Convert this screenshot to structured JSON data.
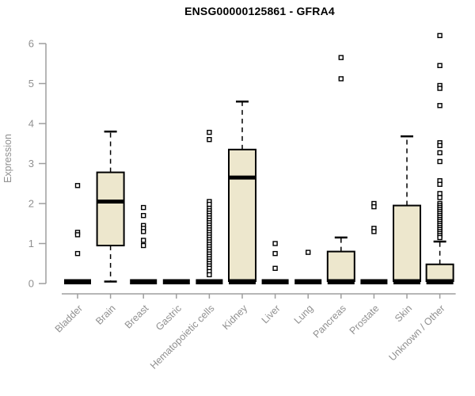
{
  "chart_data": {
    "type": "boxplot",
    "title": "ENSG00000125861 - GFRA4",
    "ylabel": "Expression",
    "xlabel": "",
    "ylim": [
      0,
      6
    ],
    "yticks": [
      0,
      1,
      2,
      3,
      4,
      5,
      6
    ],
    "grid": false,
    "legend": "none",
    "colors": {
      "box_fill": "#EDE7CD",
      "box_stroke": "#000000",
      "median": "#000000",
      "axis_line": "#9E9E9E",
      "tick_text": "#909090",
      "title_text": "#000000",
      "outlier_stroke": "#000000",
      "outlier_fill": "#ffffff",
      "background": "#ffffff"
    },
    "categories": [
      {
        "label": "Bladder",
        "q1": 0,
        "median": 0,
        "q3": 0,
        "whisker_low": 0,
        "whisker_high": 0,
        "outliers": [
          2.45,
          1.28,
          1.22,
          0.75
        ]
      },
      {
        "label": "Brain",
        "q1": 0.95,
        "median": 2.05,
        "q3": 2.78,
        "whisker_low": 0.05,
        "whisker_high": 3.8,
        "outliers": []
      },
      {
        "label": "Breast",
        "q1": 0,
        "median": 0,
        "q3": 0,
        "whisker_low": 0,
        "whisker_high": 0,
        "outliers": [
          1.9,
          1.7,
          1.45,
          1.38,
          1.3,
          1.08,
          0.95
        ]
      },
      {
        "label": "Gastric",
        "q1": 0,
        "median": 0,
        "q3": 0,
        "whisker_low": 0,
        "whisker_high": 0,
        "outliers": []
      },
      {
        "label": "Hematopoietic cells",
        "q1": 0,
        "median": 0,
        "q3": 0,
        "whisker_low": 0,
        "whisker_high": 0,
        "outliers": [
          3.78,
          3.6,
          2.05,
          1.98,
          1.88,
          1.82,
          1.76,
          1.7,
          1.64,
          1.58,
          1.52,
          1.46,
          1.4,
          1.34,
          1.28,
          1.22,
          1.16,
          1.1,
          1.04,
          0.98,
          0.92,
          0.86,
          0.8,
          0.74,
          0.68,
          0.62,
          0.56,
          0.5,
          0.44,
          0.38,
          0.3,
          0.22
        ]
      },
      {
        "label": "Kidney",
        "q1": 0,
        "median": 2.65,
        "q3": 3.35,
        "whisker_low": 0,
        "whisker_high": 4.55,
        "outliers": []
      },
      {
        "label": "Liver",
        "q1": 0,
        "median": 0,
        "q3": 0,
        "whisker_low": 0,
        "whisker_high": 0,
        "outliers": [
          1.0,
          0.75,
          0.38
        ]
      },
      {
        "label": "Lung",
        "q1": 0,
        "median": 0,
        "q3": 0,
        "whisker_low": 0,
        "whisker_high": 0,
        "outliers": [
          0.78
        ]
      },
      {
        "label": "Pancreas",
        "q1": 0,
        "median": 0,
        "q3": 0.8,
        "whisker_low": 0,
        "whisker_high": 1.15,
        "outliers": [
          5.65,
          5.12
        ]
      },
      {
        "label": "Prostate",
        "q1": 0,
        "median": 0,
        "q3": 0,
        "whisker_low": 0,
        "whisker_high": 0,
        "outliers": [
          2.0,
          1.92,
          1.38,
          1.3
        ]
      },
      {
        "label": "Skin",
        "q1": 0,
        "median": 0,
        "q3": 1.95,
        "whisker_low": 0,
        "whisker_high": 3.68,
        "outliers": []
      },
      {
        "label": "Unknown / Other",
        "q1": 0,
        "median": 0,
        "q3": 0.48,
        "whisker_low": 0,
        "whisker_high": 1.05,
        "outliers": [
          6.2,
          5.45,
          4.95,
          4.88,
          4.45,
          3.52,
          3.45,
          3.27,
          3.05,
          2.57,
          2.48,
          2.25,
          2.15,
          2.0,
          1.95,
          1.9,
          1.85,
          1.8,
          1.75,
          1.7,
          1.65,
          1.6,
          1.55,
          1.5,
          1.45,
          1.4,
          1.35,
          1.3,
          1.25,
          1.2,
          1.15
        ]
      }
    ]
  }
}
